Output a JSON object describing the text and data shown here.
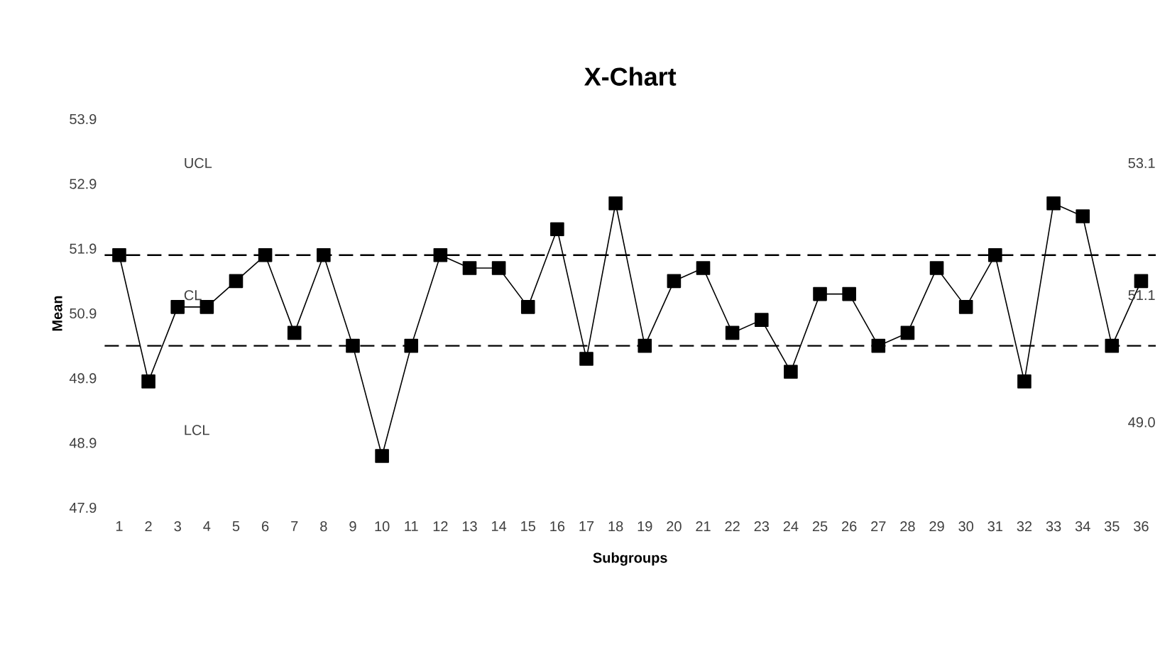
{
  "chart_data": {
    "type": "line",
    "title": "X-Chart",
    "xlabel": "Subgroups",
    "ylabel": "Mean",
    "categories": [
      "1",
      "2",
      "3",
      "4",
      "5",
      "6",
      "7",
      "8",
      "9",
      "10",
      "11",
      "12",
      "13",
      "14",
      "15",
      "16",
      "17",
      "18",
      "19",
      "20",
      "21",
      "22",
      "23",
      "24",
      "25",
      "26",
      "27",
      "28",
      "29",
      "30",
      "31",
      "32",
      "33",
      "34",
      "35",
      "36"
    ],
    "series": [
      {
        "color": "#000000",
        "values": [
          51.8,
          49.85,
          51.0,
          51.0,
          51.4,
          51.8,
          50.6,
          51.8,
          50.4,
          48.7,
          50.4,
          51.8,
          51.6,
          51.6,
          51.0,
          52.2,
          50.2,
          52.6,
          50.4,
          51.4,
          51.6,
          50.6,
          50.8,
          50.0,
          51.2,
          51.2,
          50.4,
          50.6,
          51.6,
          51.0,
          51.8,
          49.85,
          52.6,
          52.4,
          50.4,
          51.4
        ]
      }
    ],
    "ylim": [
      47.9,
      53.9
    ],
    "yticks": [
      47.9,
      48.9,
      49.9,
      50.9,
      51.9,
      52.9,
      53.9
    ],
    "ref_lines": [
      {
        "axis": "y",
        "value": 51.8,
        "color": "#000000",
        "line_style": "dashed"
      },
      {
        "axis": "y",
        "value": 50.4,
        "color": "#000000",
        "line_style": "dashed"
      }
    ],
    "annotations": [
      "UCL",
      "CL",
      "LCL",
      "53.1",
      "51.1",
      "49.0"
    ],
    "marker": "square",
    "line_style": "solid",
    "grid": false
  }
}
